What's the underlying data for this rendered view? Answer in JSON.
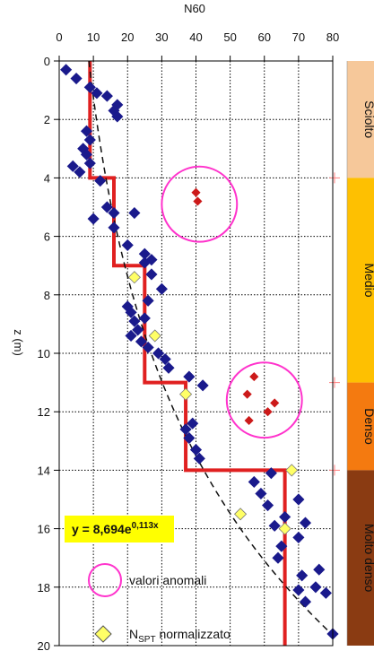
{
  "chart_data": {
    "type": "scatter",
    "xlabel": "N60",
    "ylabel": "z (m)",
    "xlim": [
      0,
      80
    ],
    "ylim": [
      0,
      20
    ],
    "y_inverted": true,
    "x_axis_position": "top",
    "x_ticks": [
      "0",
      "10",
      "20",
      "30",
      "40",
      "50",
      "60",
      "70",
      "80"
    ],
    "y_ticks": [
      "0",
      "2",
      "4",
      "6",
      "8",
      "10",
      "12",
      "14",
      "16",
      "18",
      "20"
    ],
    "grid": true,
    "series": [
      {
        "name": "",
        "marker": "diamond",
        "color": "#1a1a8c",
        "x": [
          2,
          5,
          9,
          11,
          14,
          17,
          16,
          17,
          8,
          9,
          7,
          8,
          9,
          4,
          6,
          12,
          10,
          14,
          16,
          16,
          22,
          20,
          25,
          27,
          25,
          27,
          30,
          26,
          25,
          20,
          21,
          22,
          23,
          21,
          24,
          26,
          29,
          31,
          32,
          38,
          42,
          39,
          37,
          38,
          40,
          41,
          62,
          57,
          59,
          61,
          66,
          70,
          63,
          70,
          65,
          72,
          64,
          71,
          76,
          70,
          75,
          72,
          78,
          80
        ],
        "y": [
          0.3,
          0.6,
          0.9,
          1.1,
          1.2,
          1.5,
          1.7,
          1.9,
          2.4,
          2.7,
          3.0,
          3.2,
          3.5,
          3.6,
          3.8,
          4.1,
          5.4,
          5.0,
          5.2,
          5.7,
          5.2,
          6.3,
          6.6,
          6.8,
          6.9,
          7.3,
          7.8,
          8.2,
          8.8,
          8.4,
          8.6,
          8.9,
          9.2,
          9.4,
          9.6,
          9.8,
          10.0,
          10.2,
          10.5,
          10.8,
          11.1,
          12.4,
          12.6,
          12.9,
          13.3,
          13.6,
          14.1,
          14.4,
          14.8,
          15.2,
          15.6,
          15.0,
          15.9,
          16.3,
          16.6,
          15.8,
          17.0,
          17.6,
          17.4,
          18.1,
          18.0,
          18.5,
          18.2,
          19.6
        ]
      },
      {
        "name": "valori anomali",
        "marker": "diamond",
        "color": "#cc1a1a",
        "x": [
          40,
          40.5,
          55,
          55.5,
          57,
          61,
          63
        ],
        "y": [
          4.5,
          4.8,
          11.4,
          12.3,
          10.8,
          12.0,
          11.7
        ]
      },
      {
        "name": "NSPT normalizzato",
        "marker": "diamond",
        "color": "#ffff66",
        "x": [
          22,
          28,
          37,
          68,
          53,
          66
        ],
        "y": [
          7.4,
          9.4,
          11.4,
          14.0,
          15.5,
          16.0
        ]
      }
    ],
    "step_line": {
      "color": "#e02020",
      "x": [
        9,
        9,
        16,
        16,
        25,
        25,
        37,
        37,
        66,
        66
      ],
      "y": [
        0,
        4,
        4,
        7,
        7,
        11,
        11,
        14,
        14,
        20
      ]
    },
    "trend_line": {
      "style": "dashed",
      "equation": "y = 8,694e",
      "exponent": "0,113x",
      "a": 8.694,
      "b": 0.113
    },
    "anomaly_circles": [
      {
        "cx": 41,
        "cy": 4.9,
        "r": 11
      },
      {
        "cx": 60,
        "cy": 11.6,
        "r": 11
      }
    ],
    "legend": [
      {
        "label": "valori anomali",
        "symbol": "circle",
        "color": "#ff33cc"
      },
      {
        "label_main": "N",
        "label_sub": "SPT",
        "label_rest": " normalizzato",
        "symbol": "diamond",
        "color": "#ffff66"
      }
    ],
    "bands": [
      {
        "label": "Sciolto",
        "from": 0,
        "to": 4,
        "color": "#f6c89a"
      },
      {
        "label": "Medio",
        "from": 4,
        "to": 11,
        "color": "#fec001"
      },
      {
        "label": "Denso",
        "from": 11,
        "to": 14,
        "color": "#f47a10"
      },
      {
        "label": "Molto denso",
        "from": 14,
        "to": 20,
        "color": "#8a3b12"
      }
    ],
    "band_marker_color": "#ff8080"
  }
}
